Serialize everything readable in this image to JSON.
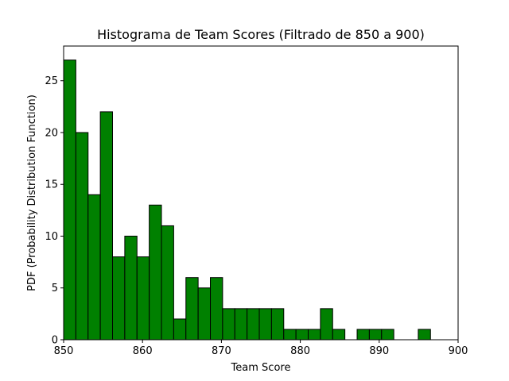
{
  "chart_data": {
    "type": "bar",
    "title": "Histograma de Team Scores (Filtrado de 850 a 900)",
    "xlabel": "Team Score",
    "ylabel": "PDF (Probability Distribution Function)",
    "xlim": [
      850,
      900
    ],
    "ylim": [
      0,
      28.35
    ],
    "bar_color": "#008000",
    "edge_color": "#000000",
    "grid": false,
    "x_ticks": [
      850,
      860,
      870,
      880,
      890,
      900
    ],
    "y_ticks": [
      0,
      5,
      10,
      15,
      20,
      25
    ],
    "bins": [
      {
        "start": 850.0,
        "end": 851.55,
        "value": 27
      },
      {
        "start": 851.55,
        "end": 853.1,
        "value": 20
      },
      {
        "start": 853.1,
        "end": 854.65,
        "value": 14
      },
      {
        "start": 854.65,
        "end": 856.2,
        "value": 22
      },
      {
        "start": 856.2,
        "end": 857.75,
        "value": 8
      },
      {
        "start": 857.75,
        "end": 859.3,
        "value": 10
      },
      {
        "start": 859.3,
        "end": 860.85,
        "value": 8
      },
      {
        "start": 860.85,
        "end": 862.4,
        "value": 13
      },
      {
        "start": 862.4,
        "end": 863.95,
        "value": 11
      },
      {
        "start": 863.95,
        "end": 865.5,
        "value": 2
      },
      {
        "start": 865.5,
        "end": 867.05,
        "value": 6
      },
      {
        "start": 867.05,
        "end": 868.6,
        "value": 5
      },
      {
        "start": 868.6,
        "end": 870.15,
        "value": 6
      },
      {
        "start": 870.15,
        "end": 871.7,
        "value": 3
      },
      {
        "start": 871.7,
        "end": 873.25,
        "value": 3
      },
      {
        "start": 873.25,
        "end": 874.8,
        "value": 3
      },
      {
        "start": 874.8,
        "end": 876.35,
        "value": 3
      },
      {
        "start": 876.35,
        "end": 877.9,
        "value": 3
      },
      {
        "start": 877.9,
        "end": 879.45,
        "value": 1
      },
      {
        "start": 879.45,
        "end": 881.0,
        "value": 1
      },
      {
        "start": 881.0,
        "end": 882.55,
        "value": 1
      },
      {
        "start": 882.55,
        "end": 884.1,
        "value": 3
      },
      {
        "start": 884.1,
        "end": 885.65,
        "value": 1
      },
      {
        "start": 885.65,
        "end": 887.2,
        "value": 0
      },
      {
        "start": 887.2,
        "end": 888.75,
        "value": 1
      },
      {
        "start": 888.75,
        "end": 890.3,
        "value": 1
      },
      {
        "start": 890.3,
        "end": 891.85,
        "value": 1
      },
      {
        "start": 891.85,
        "end": 893.4,
        "value": 0
      },
      {
        "start": 893.4,
        "end": 894.95,
        "value": 0
      },
      {
        "start": 894.95,
        "end": 896.5,
        "value": 1
      }
    ]
  }
}
